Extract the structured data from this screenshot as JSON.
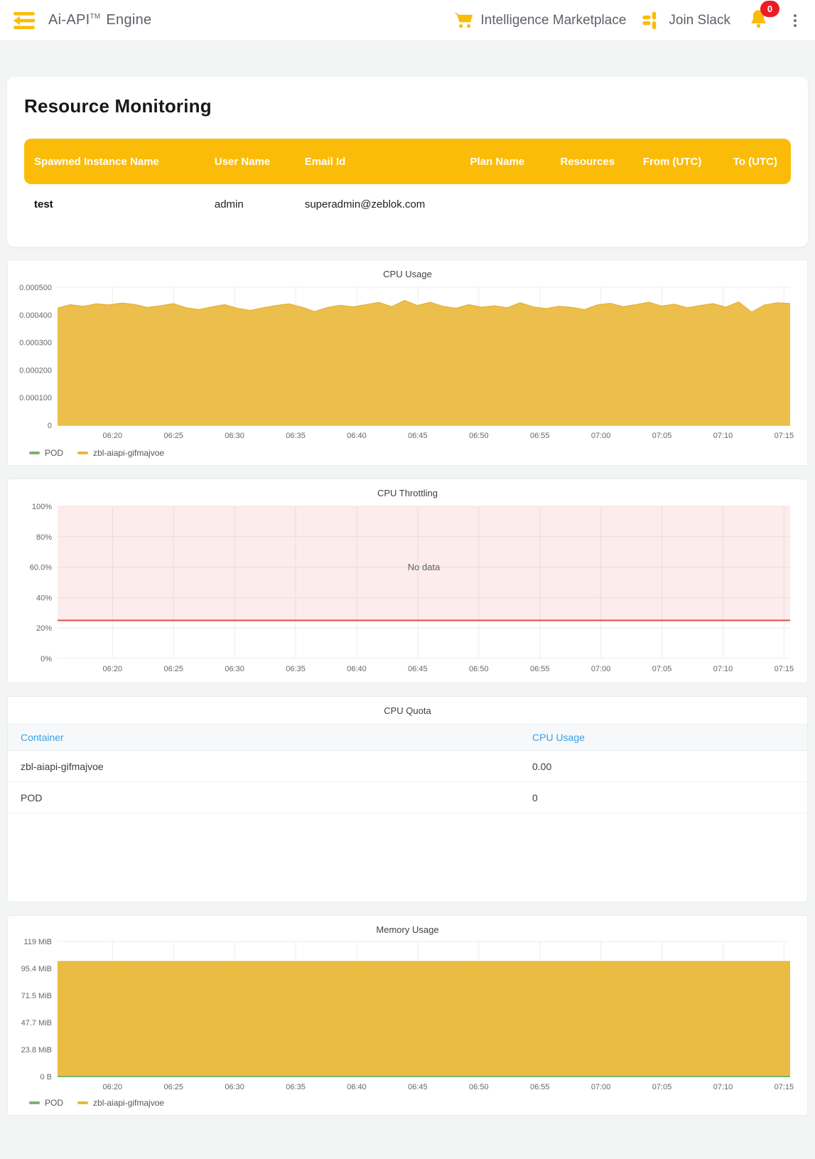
{
  "header": {
    "brand_name": "Ai-API",
    "brand_tm": "TM",
    "brand_suffix": " Engine",
    "marketplace_label": "Intelligence Marketplace",
    "slack_label": "Join Slack",
    "notification_count": "0"
  },
  "icons": {
    "back": "double-arrow-left",
    "cart": "shopping-cart",
    "slack": "slack-pinwheel",
    "bell": "notification-bell",
    "kebab": "vertical-ellipsis"
  },
  "colors": {
    "brand_yellow": "#FBBC09",
    "chart_yellow": "#EAB839",
    "chart_yellow_line": "#E3AC2B",
    "chart_green": "#7EB26D",
    "alert_red": "#E24D42",
    "alert_band": "rgba(226,77,66,0.10)",
    "link_blue": "#35A2E8",
    "badge_red": "#EC1C24",
    "grid_gray": "#ECECEC",
    "axis_text": "#63676C"
  },
  "monitoring": {
    "title": "Resource Monitoring",
    "table": {
      "columns": [
        "Spawned Instance Name",
        "User Name",
        "Email Id",
        "Plan Name",
        "Resources",
        "From (UTC)",
        "To (UTC)"
      ],
      "rows": [
        [
          "test",
          "admin",
          "superadmin@zeblok.com",
          "",
          "",
          "",
          ""
        ]
      ]
    }
  },
  "chart_data": [
    {
      "id": "cpu-usage",
      "type": "area",
      "title": "CPU Usage",
      "x_ticks": [
        "06:20",
        "06:25",
        "06:30",
        "06:35",
        "06:40",
        "06:45",
        "06:50",
        "06:55",
        "07:00",
        "07:05",
        "07:10",
        "07:15"
      ],
      "y_ticks": [
        "0.000500",
        "0.000400",
        "0.000300",
        "0.000200",
        "0.000100",
        "0"
      ],
      "ylim": [
        0,
        0.0005
      ],
      "grid": true,
      "legend_position": "bottom-left",
      "series": [
        {
          "name": "POD",
          "color": "#7EB26D",
          "line_width": 1,
          "fill": false,
          "values": [
            0,
            0
          ]
        },
        {
          "name": "zbl-aiapi-gifmajvoe",
          "color": "#EAB839",
          "line_color": "#E3AC2B",
          "fill_opacity": 0.9,
          "values": [
            0.000425,
            0.000437,
            0.000431,
            0.00044,
            0.000436,
            0.000443,
            0.000438,
            0.000427,
            0.000433,
            0.000441,
            0.000426,
            0.000419,
            0.000429,
            0.000437,
            0.000424,
            0.000416,
            0.000426,
            0.000434,
            0.00044,
            0.000428,
            0.000412,
            0.000427,
            0.000435,
            0.000429,
            0.000437,
            0.000445,
            0.00043,
            0.000452,
            0.000434,
            0.000446,
            0.000431,
            0.000424,
            0.000437,
            0.000428,
            0.000433,
            0.000426,
            0.000444,
            0.000429,
            0.000423,
            0.000431,
            0.000427,
            0.000419,
            0.000436,
            0.000442,
            0.00043,
            0.000437,
            0.000446,
            0.000432,
            0.000439,
            0.000426,
            0.000434,
            0.000441,
            0.000428,
            0.000447,
            0.00041,
            0.000436,
            0.000444,
            0.000441
          ]
        }
      ],
      "legend": [
        {
          "label": "POD",
          "color": "#7EB26D"
        },
        {
          "label": "zbl-aiapi-gifmajvoe",
          "color": "#EAB839"
        }
      ]
    },
    {
      "id": "cpu-throttling",
      "type": "area",
      "title": "CPU Throttling",
      "x_ticks": [
        "06:20",
        "06:25",
        "06:30",
        "06:35",
        "06:40",
        "06:45",
        "06:50",
        "06:55",
        "07:00",
        "07:05",
        "07:10",
        "07:15"
      ],
      "y_ticks": [
        "100%",
        "80%",
        "60.0%",
        "40%",
        "20%",
        "0%"
      ],
      "ylim": [
        0,
        100
      ],
      "grid": true,
      "no_data_text": "No data",
      "threshold": {
        "value": 25,
        "band_to": 100,
        "line_color": "#E24D42",
        "band_color": "rgba(226,77,66,0.10)"
      },
      "series": []
    },
    {
      "id": "cpu-quota",
      "type": "table",
      "title": "CPU Quota",
      "columns": [
        "Container",
        "CPU Usage"
      ],
      "rows": [
        [
          "zbl-aiapi-gifmajvoe",
          "0.00"
        ],
        [
          "POD",
          "0"
        ]
      ]
    },
    {
      "id": "memory-usage",
      "type": "area",
      "title": "Memory Usage",
      "x_ticks": [
        "06:20",
        "06:25",
        "06:30",
        "06:35",
        "06:40",
        "06:45",
        "06:50",
        "06:55",
        "07:00",
        "07:05",
        "07:10",
        "07:15"
      ],
      "y_ticks": [
        "119 MiB",
        "95.4 MiB",
        "71.5 MiB",
        "47.7 MiB",
        "23.8 MiB",
        "0 B"
      ],
      "ylim_mib": [
        0,
        119.2
      ],
      "grid": true,
      "legend_position": "bottom-left",
      "series": [
        {
          "name": "zbl-aiapi-gifmajvoe",
          "color": "#EAB839",
          "line_color": "#E3AC2B",
          "fill_opacity": 0.95,
          "values": [
            101.6,
            101.6
          ]
        },
        {
          "name": "POD",
          "color": "#7EB26D",
          "line_width": 2,
          "fill": false,
          "values": [
            0,
            0
          ]
        }
      ],
      "legend": [
        {
          "label": "POD",
          "color": "#7EB26D"
        },
        {
          "label": "zbl-aiapi-gifmajvoe",
          "color": "#EAB839"
        }
      ]
    }
  ]
}
